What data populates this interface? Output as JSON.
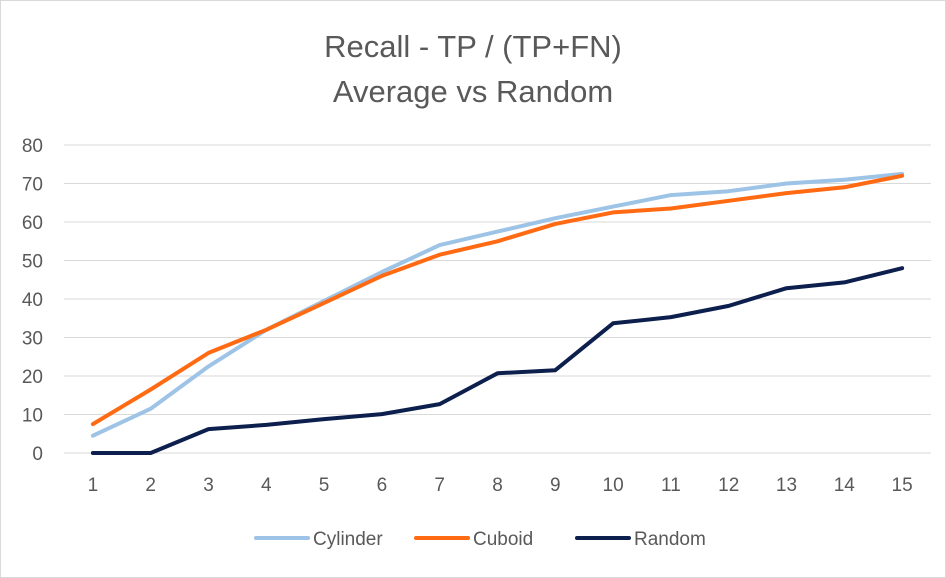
{
  "chart_data": {
    "type": "line",
    "title": "Recall - TP / (TP+FN)",
    "subtitle": "Average vs Random",
    "x": [
      1,
      2,
      3,
      4,
      5,
      6,
      7,
      8,
      9,
      10,
      11,
      12,
      13,
      14,
      15
    ],
    "ylim": [
      0,
      80
    ],
    "yticks": [
      0,
      10,
      20,
      30,
      40,
      50,
      60,
      70,
      80
    ],
    "grid": true,
    "legend": "bottom",
    "series": [
      {
        "name": "Cylinder",
        "color": "#9dc3e6",
        "values": [
          4.5,
          11.5,
          22.5,
          32,
          39.5,
          47,
          54,
          57.5,
          61,
          64,
          67,
          68,
          70,
          71,
          72.5
        ]
      },
      {
        "name": "Cuboid",
        "color": "#ff6a13",
        "values": [
          7.5,
          16.5,
          26,
          32,
          39,
          46,
          51.5,
          55,
          59.5,
          62.5,
          63.5,
          65.5,
          67.5,
          69,
          72
        ]
      },
      {
        "name": "Random",
        "color": "#0c1f4d",
        "values": [
          0,
          0,
          6.2,
          7.3,
          8.8,
          10.1,
          12.7,
          20.7,
          21.5,
          33.7,
          35.3,
          38.2,
          42.8,
          44.3,
          48
        ]
      }
    ]
  }
}
